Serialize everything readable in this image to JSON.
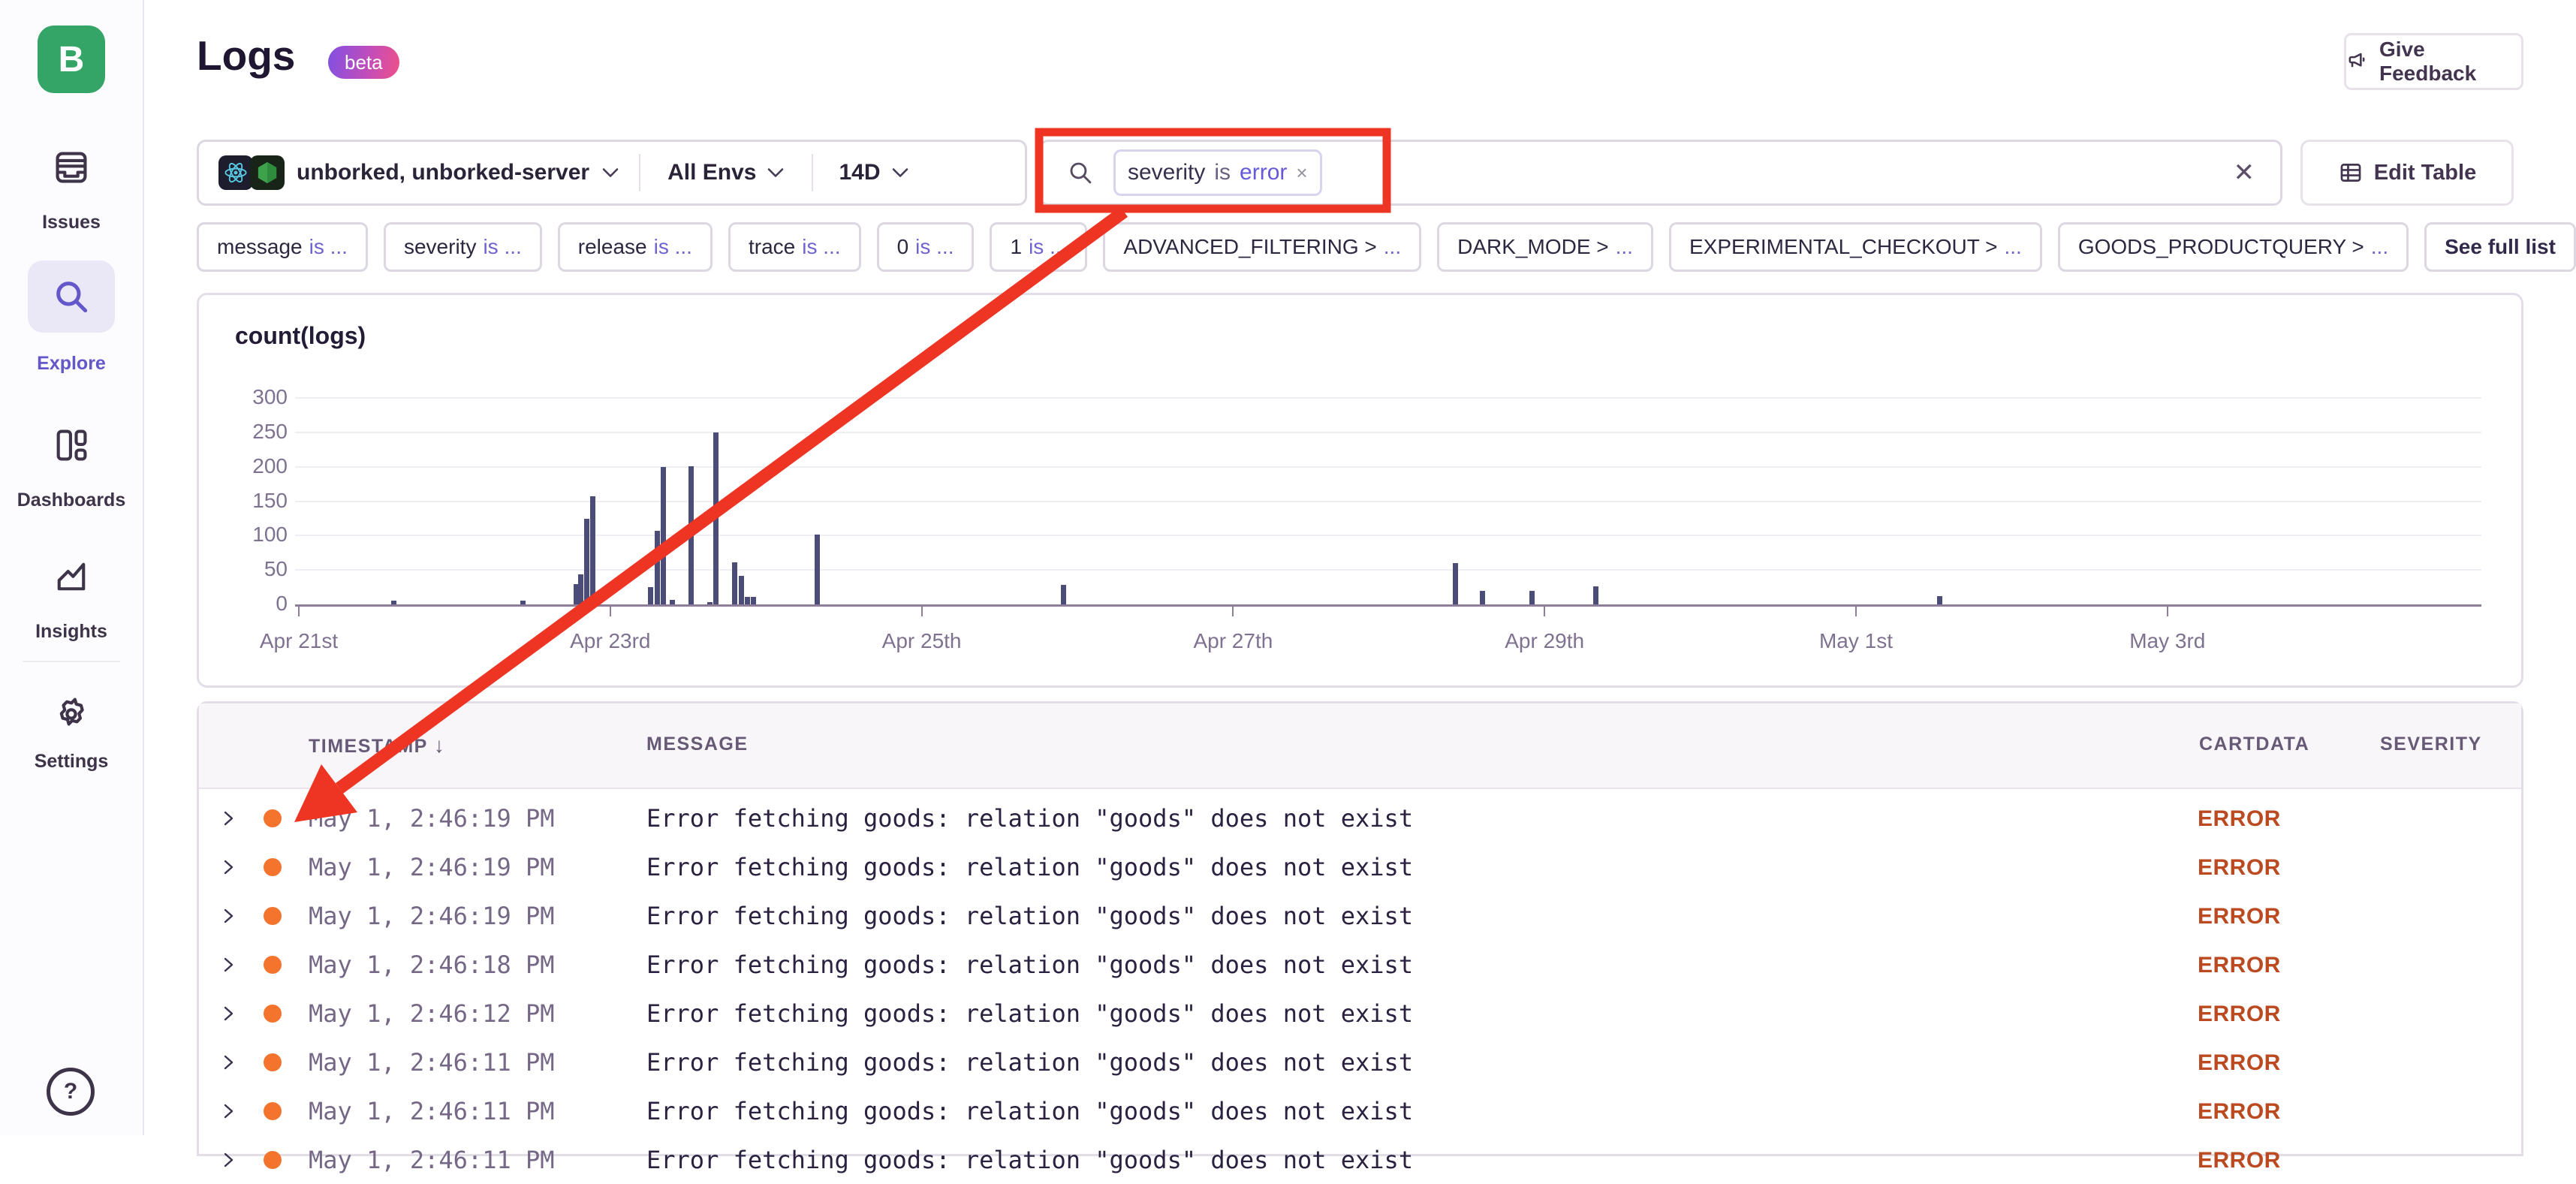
{
  "sidebar": {
    "logo_text": "B",
    "items": [
      {
        "label": "Issues"
      },
      {
        "label": "Explore"
      },
      {
        "label": "Dashboards"
      },
      {
        "label": "Insights"
      },
      {
        "label": "Settings"
      }
    ],
    "help_glyph": "?"
  },
  "header": {
    "title": "Logs",
    "badge": "beta",
    "feedback_label": "Give Feedback"
  },
  "filter_bar": {
    "project_label": "unborked, unborked-server",
    "env_label": "All Envs",
    "date_label": "14D",
    "search_token": {
      "key": "severity",
      "operator": "is",
      "value": "error",
      "close": "×"
    },
    "clear_icon": "✕",
    "edit_table_label": "Edit Table"
  },
  "filter_chips": [
    {
      "label": "message",
      "suffix": "is ...",
      "bold": false
    },
    {
      "label": "severity",
      "suffix": "is ...",
      "bold": false
    },
    {
      "label": "release",
      "suffix": "is ...",
      "bold": false
    },
    {
      "label": "trace",
      "suffix": "is ...",
      "bold": false
    },
    {
      "label": "0",
      "suffix": "is ...",
      "bold": false
    },
    {
      "label": "1",
      "suffix": "is ...",
      "bold": false
    },
    {
      "label": "ADVANCED_FILTERING >",
      "suffix": "...",
      "bold": false
    },
    {
      "label": "DARK_MODE >",
      "suffix": "...",
      "bold": false
    },
    {
      "label": "EXPERIMENTAL_CHECKOUT >",
      "suffix": "...",
      "bold": false
    },
    {
      "label": "GOODS_PRODUCTQUERY >",
      "suffix": "...",
      "bold": false
    },
    {
      "label": "See full list",
      "suffix": "",
      "bold": true
    }
  ],
  "chart_data": {
    "type": "bar",
    "title": "count(logs)",
    "ylim": [
      0,
      300
    ],
    "yticks": [
      0,
      50,
      100,
      150,
      200,
      250,
      300
    ],
    "xticks": [
      "Apr 21st",
      "Apr 23rd",
      "Apr 25th",
      "Apr 27th",
      "Apr 29th",
      "May 1st",
      "May 3rd"
    ],
    "x_unit": "days since Apr 21",
    "grid": true,
    "bar_color": "#4b4d78",
    "points": [
      {
        "x": 0.61,
        "y": 5
      },
      {
        "x": 1.44,
        "y": 5
      },
      {
        "x": 1.78,
        "y": 30
      },
      {
        "x": 1.81,
        "y": 44
      },
      {
        "x": 1.85,
        "y": 125
      },
      {
        "x": 1.89,
        "y": 157
      },
      {
        "x": 2.26,
        "y": 25
      },
      {
        "x": 2.3,
        "y": 107
      },
      {
        "x": 2.34,
        "y": 200
      },
      {
        "x": 2.4,
        "y": 7
      },
      {
        "x": 2.52,
        "y": 201
      },
      {
        "x": 2.64,
        "y": 3
      },
      {
        "x": 2.68,
        "y": 250
      },
      {
        "x": 2.8,
        "y": 61
      },
      {
        "x": 2.84,
        "y": 42
      },
      {
        "x": 2.88,
        "y": 11
      },
      {
        "x": 2.92,
        "y": 11
      },
      {
        "x": 3.33,
        "y": 102
      },
      {
        "x": 4.91,
        "y": 28
      },
      {
        "x": 7.43,
        "y": 60
      },
      {
        "x": 7.6,
        "y": 20
      },
      {
        "x": 7.92,
        "y": 20
      },
      {
        "x": 8.33,
        "y": 26
      },
      {
        "x": 10.54,
        "y": 12
      }
    ]
  },
  "table": {
    "columns": [
      "TIMESTAMP",
      "MESSAGE",
      "CARTDATA",
      "SEVERITY"
    ],
    "sort_icon": "↓",
    "rows": [
      {
        "timestamp": "May 1, 2:46:19 PM",
        "message": "Error fetching goods: relation \"goods\" does not exist",
        "severity": "ERROR"
      },
      {
        "timestamp": "May 1, 2:46:19 PM",
        "message": "Error fetching goods: relation \"goods\" does not exist",
        "severity": "ERROR"
      },
      {
        "timestamp": "May 1, 2:46:19 PM",
        "message": "Error fetching goods: relation \"goods\" does not exist",
        "severity": "ERROR"
      },
      {
        "timestamp": "May 1, 2:46:18 PM",
        "message": "Error fetching goods: relation \"goods\" does not exist",
        "severity": "ERROR"
      },
      {
        "timestamp": "May 1, 2:46:12 PM",
        "message": "Error fetching goods: relation \"goods\" does not exist",
        "severity": "ERROR"
      },
      {
        "timestamp": "May 1, 2:46:11 PM",
        "message": "Error fetching goods: relation \"goods\" does not exist",
        "severity": "ERROR"
      },
      {
        "timestamp": "May 1, 2:46:11 PM",
        "message": "Error fetching goods: relation \"goods\" does not exist",
        "severity": "ERROR"
      },
      {
        "timestamp": "May 1, 2:46:11 PM",
        "message": "Error fetching goods: relation \"goods\" does not exist",
        "severity": "ERROR"
      }
    ]
  },
  "annotation": {
    "color": "#ee3524"
  },
  "colors": {
    "accent_purple": "#6357c9",
    "logo_green": "#35a467",
    "bar_navy": "#4b4d78",
    "error_text": "#bb4a21",
    "dot_orange": "#f4742e"
  }
}
